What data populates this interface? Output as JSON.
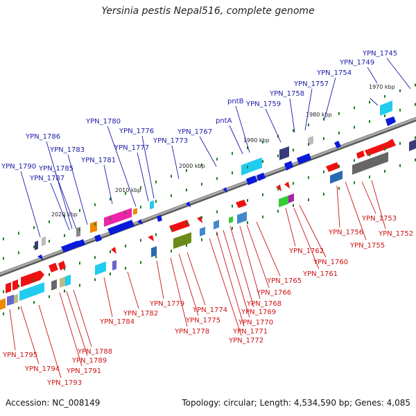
{
  "title": "Yersinia pestis Nepal516, complete genome",
  "footer": {
    "accession": "Accession: NC_008149",
    "summary": "Topology: circular; Length: 4,534,590 bp; Genes: 4,085"
  },
  "colors": {
    "backbone": "#8a8a8a",
    "top_labels": "#1a1aa8",
    "bottom_labels": "#cc1111",
    "tick": "#1f7a1f"
  },
  "kbp_labels": [
    "1970 kbp",
    "1980 kbp",
    "1990 kbp",
    "2000 kbp",
    "2010 kbp",
    "2020 kbp"
  ],
  "top_genes": [
    "YPN_1745",
    "YPN_1749",
    "YPN_1754",
    "YPN_1757",
    "YPN_1758",
    "YPN_1759",
    "pntB",
    "pntA",
    "YPN_1767",
    "YPN_1773",
    "YPN_1776",
    "YPN_1777",
    "YPN_1780",
    "YPN_1781",
    "YPN_1783",
    "YPN_1786",
    "YPN_1785",
    "YPN_1787",
    "YPN_1790"
  ],
  "bottom_genes": [
    "YPN_1752",
    "YPN_1753",
    "YPN_1755",
    "YPN_1756",
    "YPN_1760",
    "YPN_1761",
    "YPN_1762",
    "YPN_1765",
    "YPN_1766",
    "YPN_1768",
    "YPN_1769",
    "YPN_1770",
    "YPN_1771",
    "YPN_1772",
    "YPN_1774",
    "YPN_1775",
    "YPN_1778",
    "YPN_1779",
    "YPN_1782",
    "YPN_1784",
    "YPN_1788",
    "YPN_1789",
    "YPN_1791",
    "YPN_1793",
    "YPN_1794",
    "YPN_1795"
  ]
}
